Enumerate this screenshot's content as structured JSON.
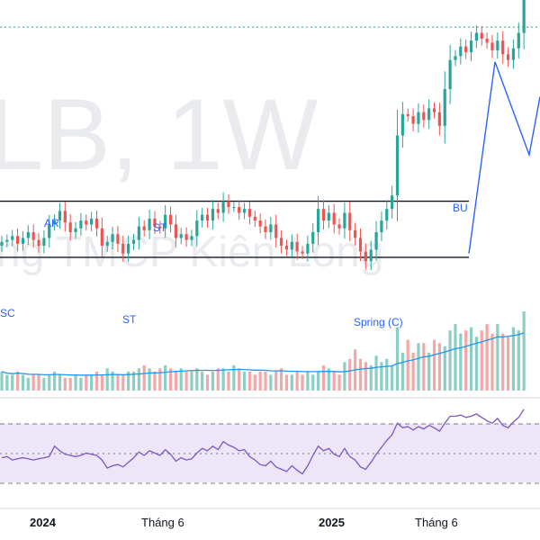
{
  "chart_data": {
    "type": "candlestick",
    "watermark": {
      "symbol_text": "LB, 1W",
      "name_text": "ng TMCP Kiên Long"
    },
    "x_axis": {
      "ticks": [
        {
          "label": "2024",
          "bold": true,
          "time": "2024-01"
        },
        {
          "label": "Tháng 6",
          "bold": false,
          "time": "2024-06"
        },
        {
          "label": "2025",
          "bold": true,
          "time": "2025-01"
        },
        {
          "label": "Tháng 6",
          "bold": false,
          "time": "2025-06"
        }
      ]
    },
    "price_panel": {
      "y_range": [
        16,
        36
      ],
      "range_lines": {
        "resistance": 25.6,
        "support": 22.7
      },
      "dotted_reference_level": 34.6,
      "annotations": [
        "SC",
        "AR",
        "ST",
        "ST",
        "Spring (C)",
        "BU"
      ],
      "projection_levels": [
        22.9,
        32.8,
        28.0,
        31.0
      ],
      "closes": [
        23.5,
        23.6,
        23.8,
        23.4,
        23.7,
        24.0,
        23.6,
        23.3,
        23.7,
        24.4,
        24.6,
        25.1,
        24.5,
        24.0,
        24.2,
        24.6,
        24.4,
        24.7,
        24.2,
        23.3,
        23.5,
        23.9,
        23.4,
        22.9,
        23.4,
        23.6,
        24.3,
        24.1,
        24.7,
        24.3,
        24.2,
        24.9,
        24.4,
        23.7,
        23.9,
        23.6,
        23.8,
        24.6,
        24.9,
        24.6,
        25.2,
        25.0,
        25.6,
        25.3,
        25.3,
        25.0,
        25.2,
        24.8,
        24.6,
        24.3,
        24.0,
        24.4,
        23.7,
        23.3,
        23.1,
        23.5,
        23.0,
        22.9,
        23.4,
        24.0,
        25.2,
        24.6,
        25.0,
        24.4,
        24.2,
        25.0,
        24.1,
        23.7,
        23.0,
        22.5,
        23.1,
        24.0,
        24.6,
        25.2,
        25.9,
        29.0,
        30.1,
        30.0,
        29.6,
        30.2,
        29.8,
        30.4,
        30.2,
        29.5,
        31.4,
        32.9,
        33.1,
        33.6,
        33.3,
        33.9,
        34.3,
        34.0,
        33.8,
        33.4,
        33.9,
        33.2,
        32.9,
        33.5,
        34.3,
        36.0
      ]
    },
    "volume_panel": {
      "moving_average": true,
      "values": [
        0.6,
        0.5,
        0.5,
        0.6,
        0.5,
        0.4,
        0.5,
        0.5,
        0.4,
        0.5,
        0.6,
        0.5,
        0.4,
        0.4,
        0.5,
        0.4,
        0.5,
        0.5,
        0.6,
        0.5,
        0.7,
        0.6,
        0.5,
        0.5,
        0.6,
        0.6,
        0.7,
        0.8,
        0.7,
        0.6,
        0.7,
        0.8,
        0.7,
        0.6,
        0.7,
        0.6,
        0.6,
        0.7,
        0.6,
        0.5,
        0.6,
        0.7,
        0.7,
        0.6,
        0.8,
        0.7,
        0.6,
        0.6,
        0.5,
        0.6,
        0.6,
        0.5,
        0.6,
        0.7,
        0.5,
        0.5,
        0.6,
        0.5,
        0.6,
        0.5,
        0.6,
        0.8,
        0.7,
        0.6,
        0.5,
        0.9,
        1.0,
        1.3,
        1.0,
        0.9,
        0.8,
        1.1,
        0.9,
        1.0,
        0.8,
        2.0,
        1.2,
        1.6,
        1.2,
        1.5,
        1.5,
        1.2,
        1.6,
        1.5,
        1.4,
        1.9,
        2.1,
        1.8,
        1.9,
        2.0,
        1.7,
        1.9,
        2.1,
        1.8,
        2.1,
        1.8,
        1.7,
        2.0,
        1.9,
        2.5
      ]
    },
    "rsi_panel": {
      "y_range": [
        0,
        100
      ],
      "band": [
        30,
        70
      ],
      "middle": 50,
      "values": [
        48,
        49,
        46,
        47,
        48,
        47,
        46,
        47,
        48,
        49,
        58,
        54,
        51,
        50,
        49,
        50,
        52,
        51,
        50,
        46,
        39,
        41,
        42,
        40,
        44,
        48,
        53,
        50,
        54,
        52,
        50,
        55,
        51,
        45,
        48,
        46,
        47,
        52,
        56,
        54,
        58,
        55,
        62,
        59,
        57,
        54,
        55,
        49,
        46,
        42,
        41,
        45,
        40,
        38,
        36,
        41,
        37,
        34,
        41,
        50,
        58,
        54,
        56,
        51,
        49,
        56,
        49,
        46,
        40,
        38,
        44,
        51,
        57,
        63,
        68,
        78,
        74,
        75,
        72,
        75,
        73,
        76,
        74,
        71,
        78,
        84,
        84,
        85,
        83,
        84,
        86,
        83,
        80,
        78,
        82,
        76,
        74,
        79,
        83,
        90
      ]
    }
  }
}
